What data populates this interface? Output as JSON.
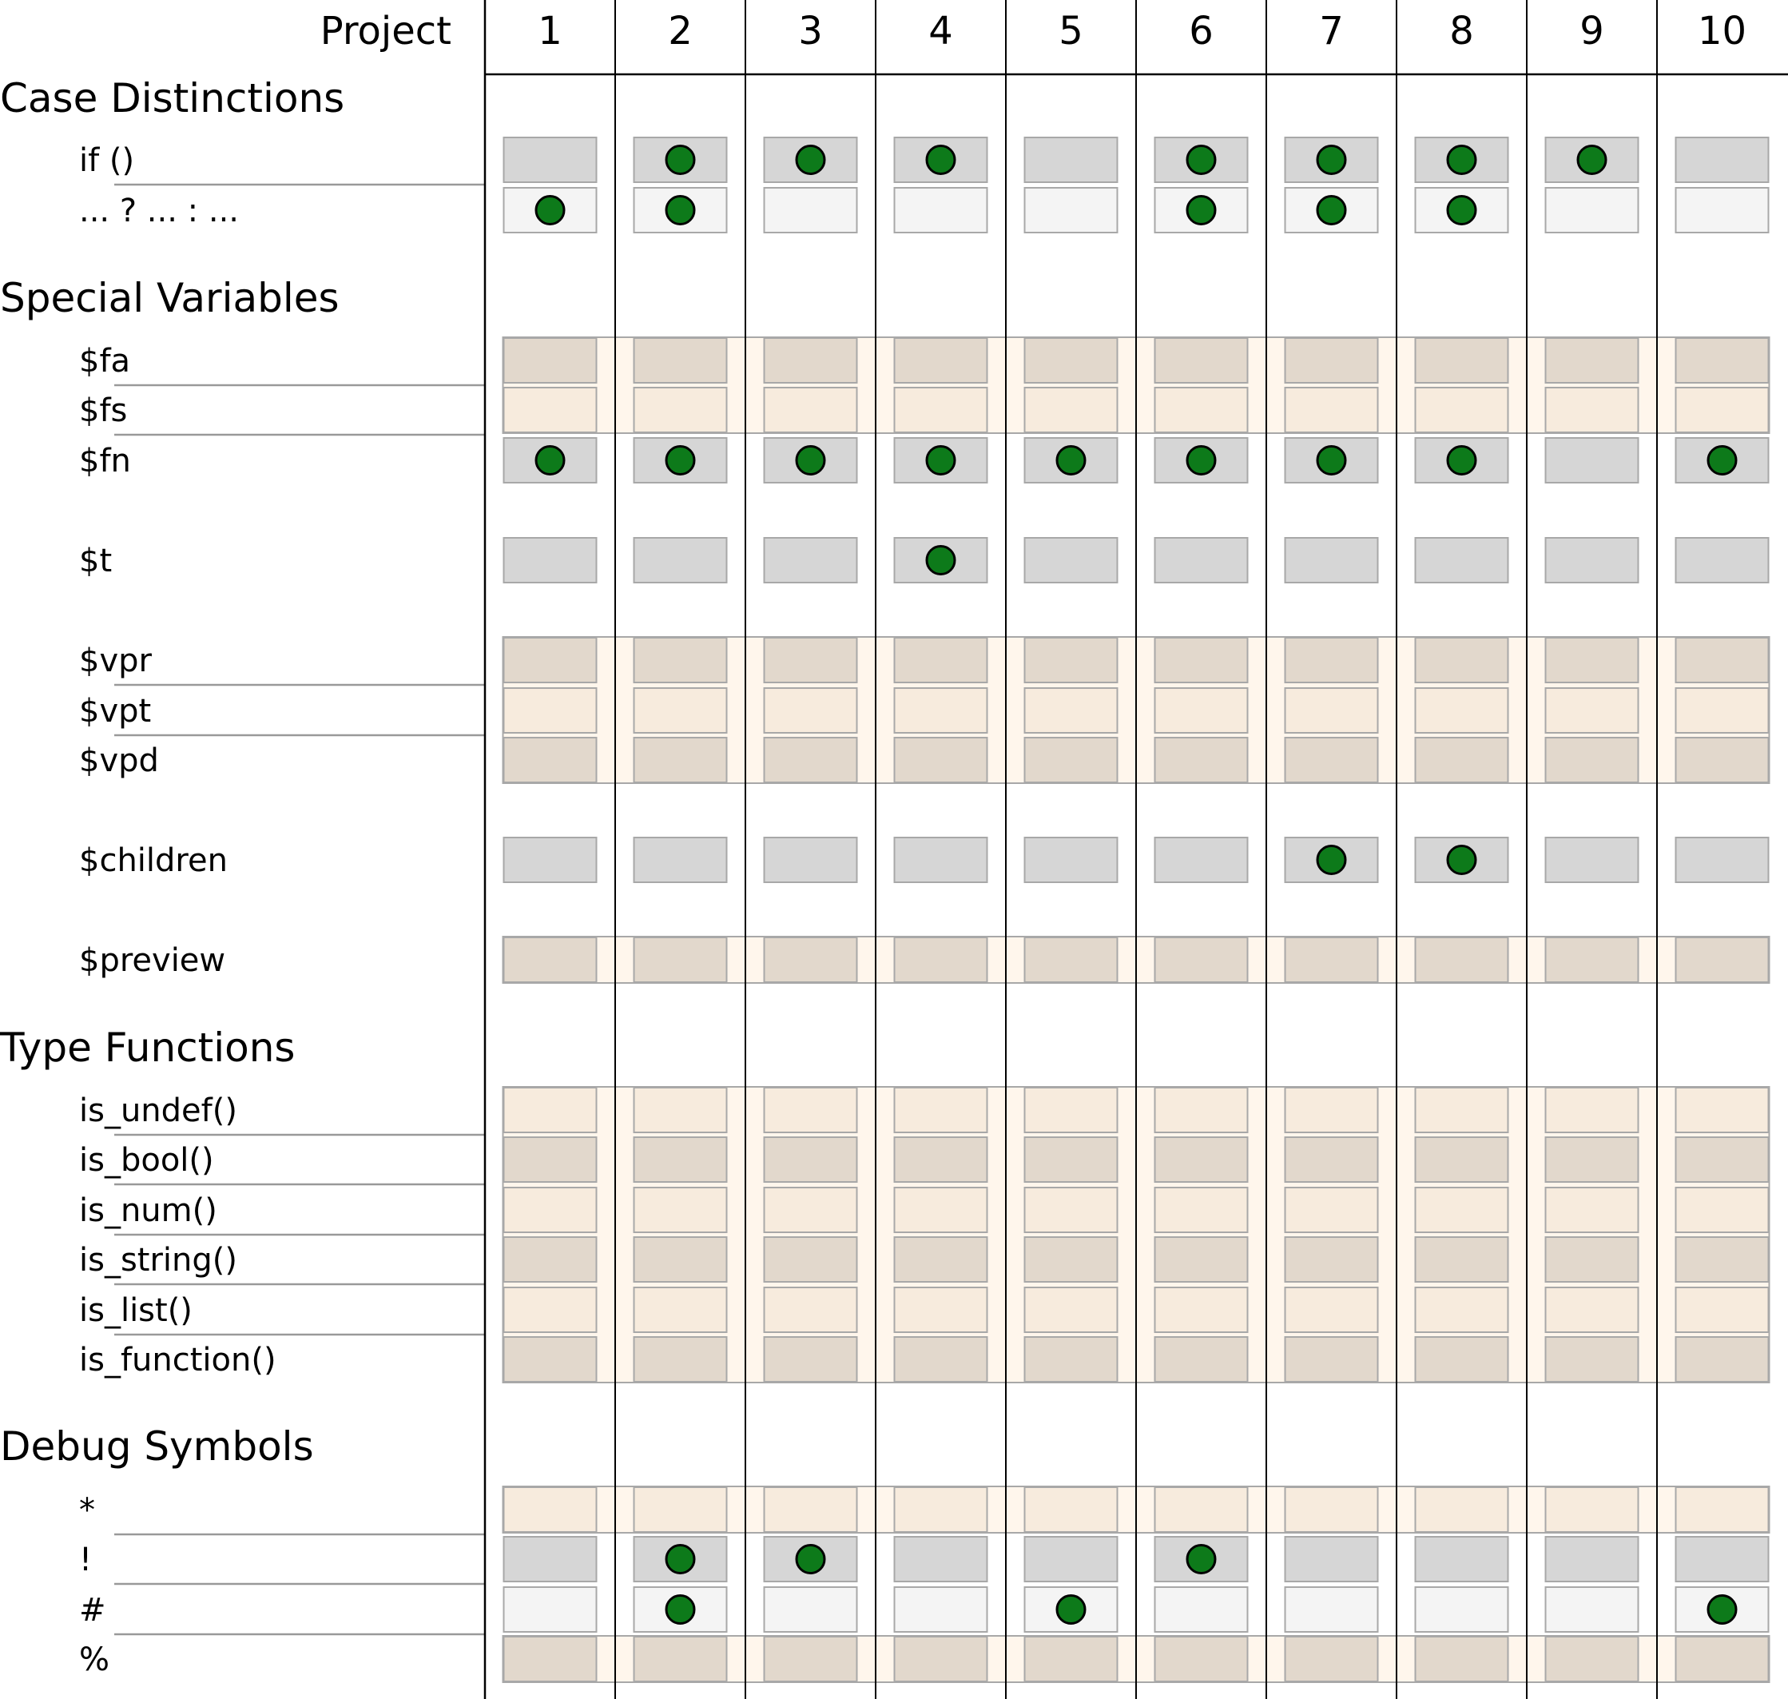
{
  "chart_data": {
    "type": "table",
    "header_label": "Project",
    "projects": [
      "1",
      "2",
      "3",
      "4",
      "5",
      "6",
      "7",
      "8",
      "9",
      "10"
    ],
    "colors": {
      "dot": "#0d7a1a",
      "gray_dark": "#d6d6d6",
      "gray_light": "#f4f4f4",
      "tan_dark": "#e2d8cc",
      "tan_light": "#f7ebdd",
      "tan_band": "#fff6ec",
      "cell_border": "#a8a8a8"
    },
    "sections": [
      {
        "title": "Case Distinctions",
        "rows": [
          {
            "label": "if ()",
            "style": "gray-dark",
            "marks": [
              0,
              1,
              1,
              1,
              0,
              1,
              1,
              1,
              1,
              0
            ]
          },
          {
            "label": "... ? ... : ...",
            "style": "gray-light",
            "marks": [
              1,
              1,
              0,
              0,
              0,
              1,
              1,
              1,
              0,
              0
            ]
          }
        ]
      },
      {
        "title": "Special Variables",
        "rows": [
          {
            "label": "$fa",
            "style": "tan-dark",
            "marks": [
              0,
              0,
              0,
              0,
              0,
              0,
              0,
              0,
              0,
              0
            ]
          },
          {
            "label": "$fs",
            "style": "tan-light",
            "marks": [
              0,
              0,
              0,
              0,
              0,
              0,
              0,
              0,
              0,
              0
            ]
          },
          {
            "label": "$fn",
            "style": "gray-dark",
            "marks": [
              1,
              1,
              1,
              1,
              1,
              1,
              1,
              1,
              0,
              1
            ]
          },
          {
            "label": "$t",
            "style": "gray-dark",
            "marks": [
              0,
              0,
              0,
              1,
              0,
              0,
              0,
              0,
              0,
              0
            ]
          },
          {
            "label": "$vpr",
            "style": "tan-dark",
            "marks": [
              0,
              0,
              0,
              0,
              0,
              0,
              0,
              0,
              0,
              0
            ]
          },
          {
            "label": "$vpt",
            "style": "tan-light",
            "marks": [
              0,
              0,
              0,
              0,
              0,
              0,
              0,
              0,
              0,
              0
            ]
          },
          {
            "label": "$vpd",
            "style": "tan-dark",
            "marks": [
              0,
              0,
              0,
              0,
              0,
              0,
              0,
              0,
              0,
              0
            ]
          },
          {
            "label": "$children",
            "style": "gray-dark",
            "marks": [
              0,
              0,
              0,
              0,
              0,
              0,
              1,
              1,
              0,
              0
            ]
          },
          {
            "label": "$preview",
            "style": "tan-dark",
            "marks": [
              0,
              0,
              0,
              0,
              0,
              0,
              0,
              0,
              0,
              0
            ]
          }
        ]
      },
      {
        "title": "Type Functions",
        "rows": [
          {
            "label": "is_undef()",
            "style": "tan-light",
            "marks": [
              0,
              0,
              0,
              0,
              0,
              0,
              0,
              0,
              0,
              0
            ]
          },
          {
            "label": "is_bool()",
            "style": "tan-dark",
            "marks": [
              0,
              0,
              0,
              0,
              0,
              0,
              0,
              0,
              0,
              0
            ]
          },
          {
            "label": "is_num()",
            "style": "tan-light",
            "marks": [
              0,
              0,
              0,
              0,
              0,
              0,
              0,
              0,
              0,
              0
            ]
          },
          {
            "label": "is_string()",
            "style": "tan-dark",
            "marks": [
              0,
              0,
              0,
              0,
              0,
              0,
              0,
              0,
              0,
              0
            ]
          },
          {
            "label": "is_list()",
            "style": "tan-light",
            "marks": [
              0,
              0,
              0,
              0,
              0,
              0,
              0,
              0,
              0,
              0
            ]
          },
          {
            "label": "is_function()",
            "style": "tan-dark",
            "marks": [
              0,
              0,
              0,
              0,
              0,
              0,
              0,
              0,
              0,
              0
            ]
          }
        ]
      },
      {
        "title": "Debug Symbols",
        "rows": [
          {
            "label": "*",
            "style": "tan-light",
            "marks": [
              0,
              0,
              0,
              0,
              0,
              0,
              0,
              0,
              0,
              0
            ]
          },
          {
            "label": "!",
            "style": "gray-dark",
            "marks": [
              0,
              1,
              1,
              0,
              0,
              1,
              0,
              0,
              0,
              0
            ]
          },
          {
            "label": "#",
            "style": "gray-light",
            "marks": [
              0,
              1,
              0,
              0,
              1,
              0,
              0,
              0,
              0,
              1
            ]
          },
          {
            "label": "%",
            "style": "tan-dark",
            "marks": [
              0,
              0,
              0,
              0,
              0,
              0,
              0,
              0,
              0,
              0
            ]
          }
        ]
      }
    ]
  }
}
